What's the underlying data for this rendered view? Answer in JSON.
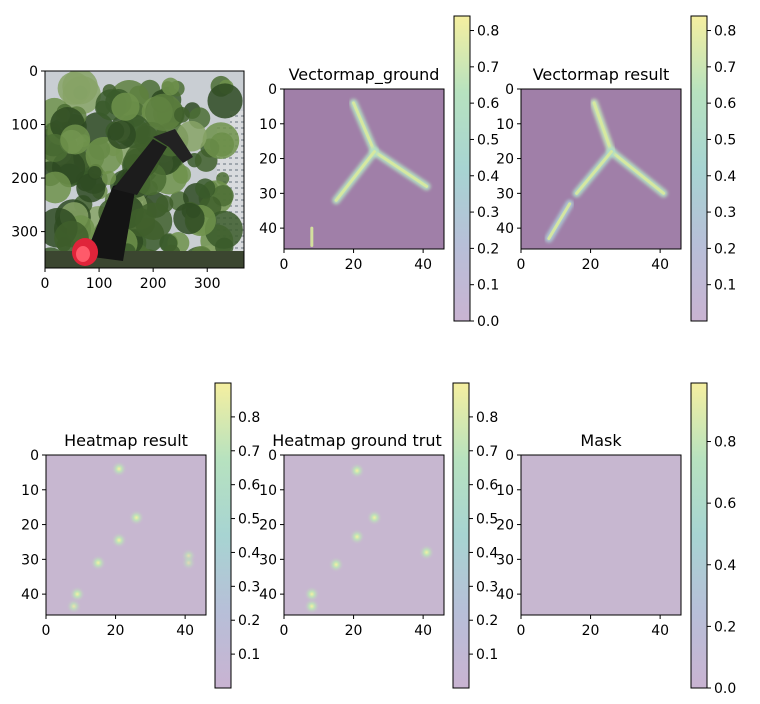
{
  "chart_data": [
    {
      "id": "photo",
      "type": "image",
      "title": "",
      "x_ticks": [
        0,
        100,
        200,
        300
      ],
      "y_ticks": [
        0,
        100,
        200,
        300
      ],
      "xlim": [
        0,
        368
      ],
      "ylim": [
        368,
        0
      ],
      "content": "tree-photo-with-robot-arm-red-light"
    },
    {
      "id": "vectormap_ground",
      "type": "heatmap",
      "title": "Vectormap_ground",
      "x_ticks": [
        0,
        20,
        40
      ],
      "y_ticks": [
        0,
        10,
        20,
        30,
        40
      ],
      "xlim": [
        0,
        46
      ],
      "ylim": [
        46,
        0
      ],
      "colorbar": {
        "range": [
          0.0,
          0.84
        ],
        "ticks": [
          "0.0",
          "0.1",
          "0.2",
          "0.3",
          "0.4",
          "0.5",
          "0.6",
          "0.7",
          "0.8"
        ]
      },
      "segments": [
        {
          "from": [
            20,
            4
          ],
          "to": [
            26,
            18
          ],
          "value": 0.45
        },
        {
          "from": [
            26,
            18
          ],
          "to": [
            41,
            28
          ],
          "value": 0.45
        },
        {
          "from": [
            26,
            18
          ],
          "to": [
            15,
            32
          ],
          "value": 0.45
        },
        {
          "from": [
            8,
            40
          ],
          "to": [
            8,
            45
          ],
          "value": 0.55
        }
      ]
    },
    {
      "id": "vectormap_result",
      "type": "heatmap",
      "title": "Vectormap result",
      "x_ticks": [
        0,
        20,
        40
      ],
      "y_ticks": [
        0,
        10,
        20,
        30,
        40
      ],
      "xlim": [
        0,
        46
      ],
      "ylim": [
        46,
        0
      ],
      "colorbar": {
        "range": [
          0.0,
          0.84
        ],
        "ticks": [
          "0.1",
          "0.2",
          "0.3",
          "0.4",
          "0.5",
          "0.6",
          "0.7",
          "0.8"
        ]
      },
      "segments": [
        {
          "from": [
            21,
            4
          ],
          "to": [
            26,
            18
          ],
          "value": 0.5
        },
        {
          "from": [
            26,
            18
          ],
          "to": [
            41,
            30
          ],
          "value": 0.45
        },
        {
          "from": [
            26,
            18
          ],
          "to": [
            16,
            30
          ],
          "value": 0.4
        },
        {
          "from": [
            14,
            33
          ],
          "to": [
            8,
            43
          ],
          "value": 0.25
        }
      ]
    },
    {
      "id": "heatmap_result",
      "type": "heatmap",
      "title": "Heatmap result",
      "x_ticks": [
        0,
        20,
        40
      ],
      "y_ticks": [
        0,
        10,
        20,
        30,
        40
      ],
      "xlim": [
        0,
        46
      ],
      "ylim": [
        46,
        0
      ],
      "colorbar": {
        "range": [
          0.0,
          0.9
        ],
        "ticks": [
          "0.1",
          "0.2",
          "0.3",
          "0.4",
          "0.5",
          "0.6",
          "0.7",
          "0.8"
        ]
      },
      "points": [
        {
          "x": 21,
          "y": 4,
          "value": 0.5
        },
        {
          "x": 26,
          "y": 18,
          "value": 0.5
        },
        {
          "x": 21,
          "y": 24.5,
          "value": 0.5
        },
        {
          "x": 15,
          "y": 31,
          "value": 0.5
        },
        {
          "x": 41,
          "y": 29,
          "value": 0.35
        },
        {
          "x": 41,
          "y": 31,
          "value": 0.3
        },
        {
          "x": 9,
          "y": 40,
          "value": 0.5
        },
        {
          "x": 8,
          "y": 43.5,
          "value": 0.4
        }
      ]
    },
    {
      "id": "heatmap_ground_truth",
      "type": "heatmap",
      "title": "Heatmap ground trut",
      "x_ticks": [
        0,
        20,
        40
      ],
      "y_ticks": [
        0,
        10,
        20,
        30,
        40
      ],
      "xlim": [
        0,
        46
      ],
      "ylim": [
        46,
        0
      ],
      "colorbar": {
        "range": [
          0.0,
          0.9
        ],
        "ticks": [
          "0.1",
          "0.2",
          "0.3",
          "0.4",
          "0.5",
          "0.6",
          "0.7",
          "0.8"
        ]
      },
      "points": [
        {
          "x": 21,
          "y": 4.5,
          "value": 0.5
        },
        {
          "x": 26,
          "y": 18,
          "value": 0.5
        },
        {
          "x": 21,
          "y": 23.5,
          "value": 0.5
        },
        {
          "x": 15,
          "y": 31.5,
          "value": 0.5
        },
        {
          "x": 41,
          "y": 28,
          "value": 0.5
        },
        {
          "x": 8,
          "y": 40,
          "value": 0.5
        },
        {
          "x": 8,
          "y": 43.5,
          "value": 0.5
        }
      ]
    },
    {
      "id": "mask",
      "type": "heatmap",
      "title": "Mask",
      "x_ticks": [
        0,
        20,
        40
      ],
      "y_ticks": [
        0,
        10,
        20,
        30,
        40
      ],
      "xlim": [
        0,
        46
      ],
      "ylim": [
        46,
        0
      ],
      "colorbar": {
        "range": [
          0.0,
          0.99
        ],
        "ticks": [
          "0.0",
          "0.2",
          "0.4",
          "0.6",
          "0.8"
        ]
      },
      "fill_value": 0.0
    }
  ],
  "colors": {
    "viridis_low": "#440154",
    "viridis_mid": "#21918c",
    "viridis_high": "#fde725",
    "dark_background": "#a07fa8",
    "light_background": "#c7b7d0"
  }
}
